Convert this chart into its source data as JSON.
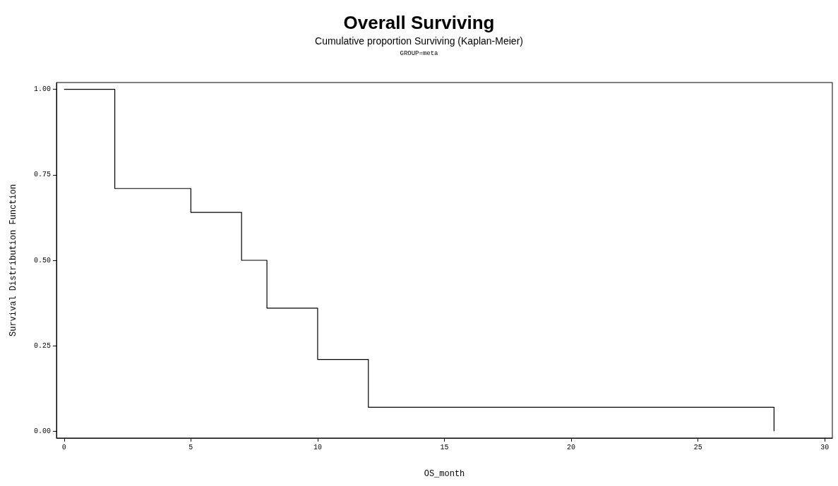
{
  "chart_data": {
    "type": "step",
    "title": "Overall Surviving",
    "subtitle": "Cumulative proportion Surviving (Kaplan-Meier)",
    "annotations": [
      "GROUP=meta"
    ],
    "xlabel": "OS_month",
    "ylabel": "Survival Distribution Function",
    "x": [
      0,
      2,
      5,
      7,
      8,
      10,
      12,
      28
    ],
    "series": [
      {
        "color": "#000000",
        "values": [
          1,
          0.71,
          0.64,
          0.5,
          0.36,
          0.21,
          0.07,
          0
        ]
      }
    ],
    "xlim": [
      -0.3,
      30.3
    ],
    "xticks": [
      0,
      5,
      10,
      15,
      20,
      25,
      30
    ],
    "ylim": [
      -0.02,
      1.02
    ],
    "yticks": [
      {
        "value": 0,
        "label": "0.00"
      },
      {
        "value": 0.25,
        "label": "0.25"
      },
      {
        "value": 0.5,
        "label": "0.50"
      },
      {
        "value": 0.75,
        "label": "0.75"
      },
      {
        "value": 1,
        "label": "1.00"
      }
    ],
    "grid": false,
    "marker": "none",
    "line_style": "solid"
  }
}
